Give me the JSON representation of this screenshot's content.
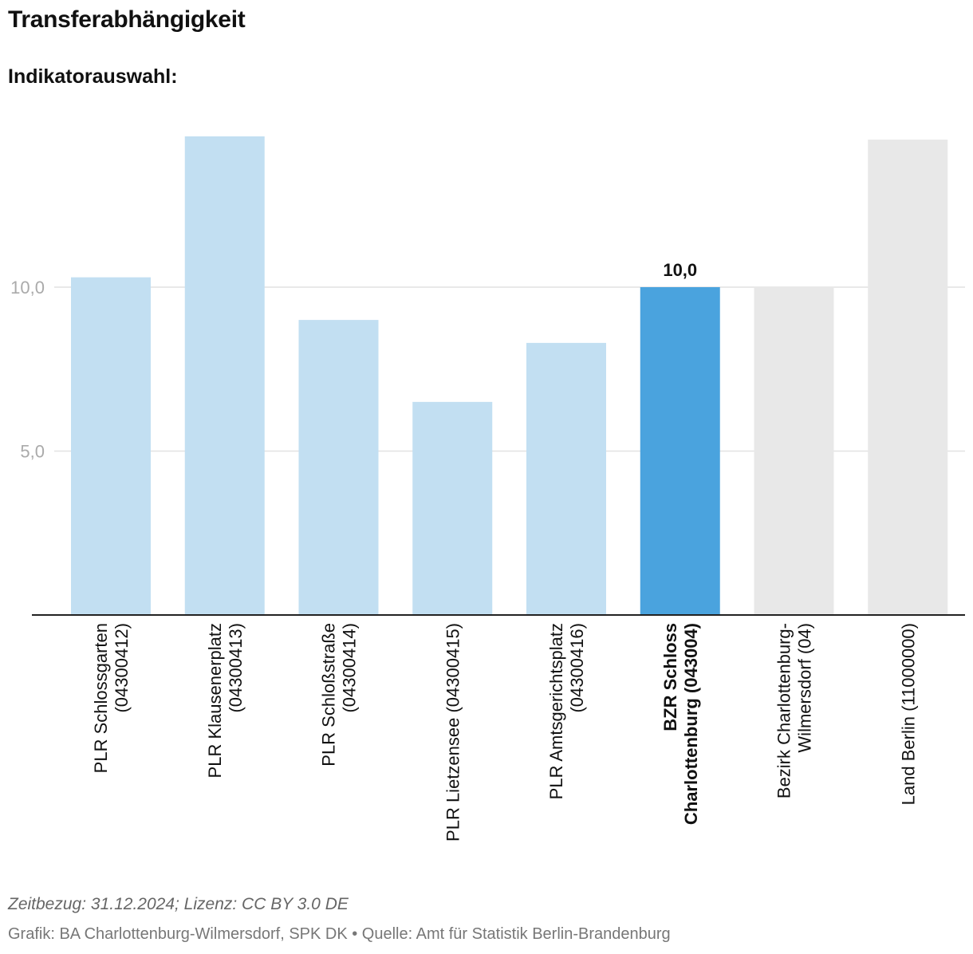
{
  "header": {
    "title": "Transferabhängigkeit",
    "subtitle": "Indikatorauswahl:"
  },
  "chart_data": {
    "type": "bar",
    "title": "Transferabhängigkeit",
    "subtitle": "Indikatorauswahl:",
    "xlabel": "",
    "ylabel": "",
    "ylim": [
      0,
      14.7
    ],
    "yticks": [
      {
        "value": 5.0,
        "label": "5,0"
      },
      {
        "value": 10.0,
        "label": "10,0"
      }
    ],
    "grid": true,
    "categories": [
      {
        "lines": [
          "PLR Schlossgarten",
          "(04300412)"
        ],
        "value": 10.3,
        "kind": "plr"
      },
      {
        "lines": [
          "PLR Klausenerplatz",
          "(04300413)"
        ],
        "value": 14.6,
        "kind": "plr"
      },
      {
        "lines": [
          "PLR Schloßstraße",
          "(04300414)"
        ],
        "value": 9.0,
        "kind": "plr"
      },
      {
        "lines": [
          "PLR Lietzensee (04300415)"
        ],
        "value": 6.5,
        "kind": "plr"
      },
      {
        "lines": [
          "PLR Amtsgerichtsplatz",
          "(04300416)"
        ],
        "value": 8.3,
        "kind": "plr"
      },
      {
        "lines": [
          "BZR Schloss",
          "Charlottenburg (043004)"
        ],
        "value": 10.0,
        "kind": "highlight",
        "data_label": "10,0"
      },
      {
        "lines": [
          "Bezirk Charlottenburg-",
          "Wilmersdorf (04)"
        ],
        "value": 10.0,
        "kind": "reference"
      },
      {
        "lines": [
          "Land Berlin (11000000)"
        ],
        "value": 14.5,
        "kind": "reference"
      }
    ],
    "colors": {
      "plr": "#c2dff2",
      "highlight": "#4aa3de",
      "reference": "#e8e8e8",
      "tick_label": "#aaaaaa",
      "grid": "#e2e2e2",
      "axis": "#222222"
    }
  },
  "footer": {
    "note": "Zeitbezug: 31.12.2024; Lizenz: CC BY 3.0 DE",
    "credit": "Grafik: BA Charlottenburg-Wilmersdorf, SPK DK • Quelle: Amt für Statistik Berlin-Brandenburg"
  }
}
